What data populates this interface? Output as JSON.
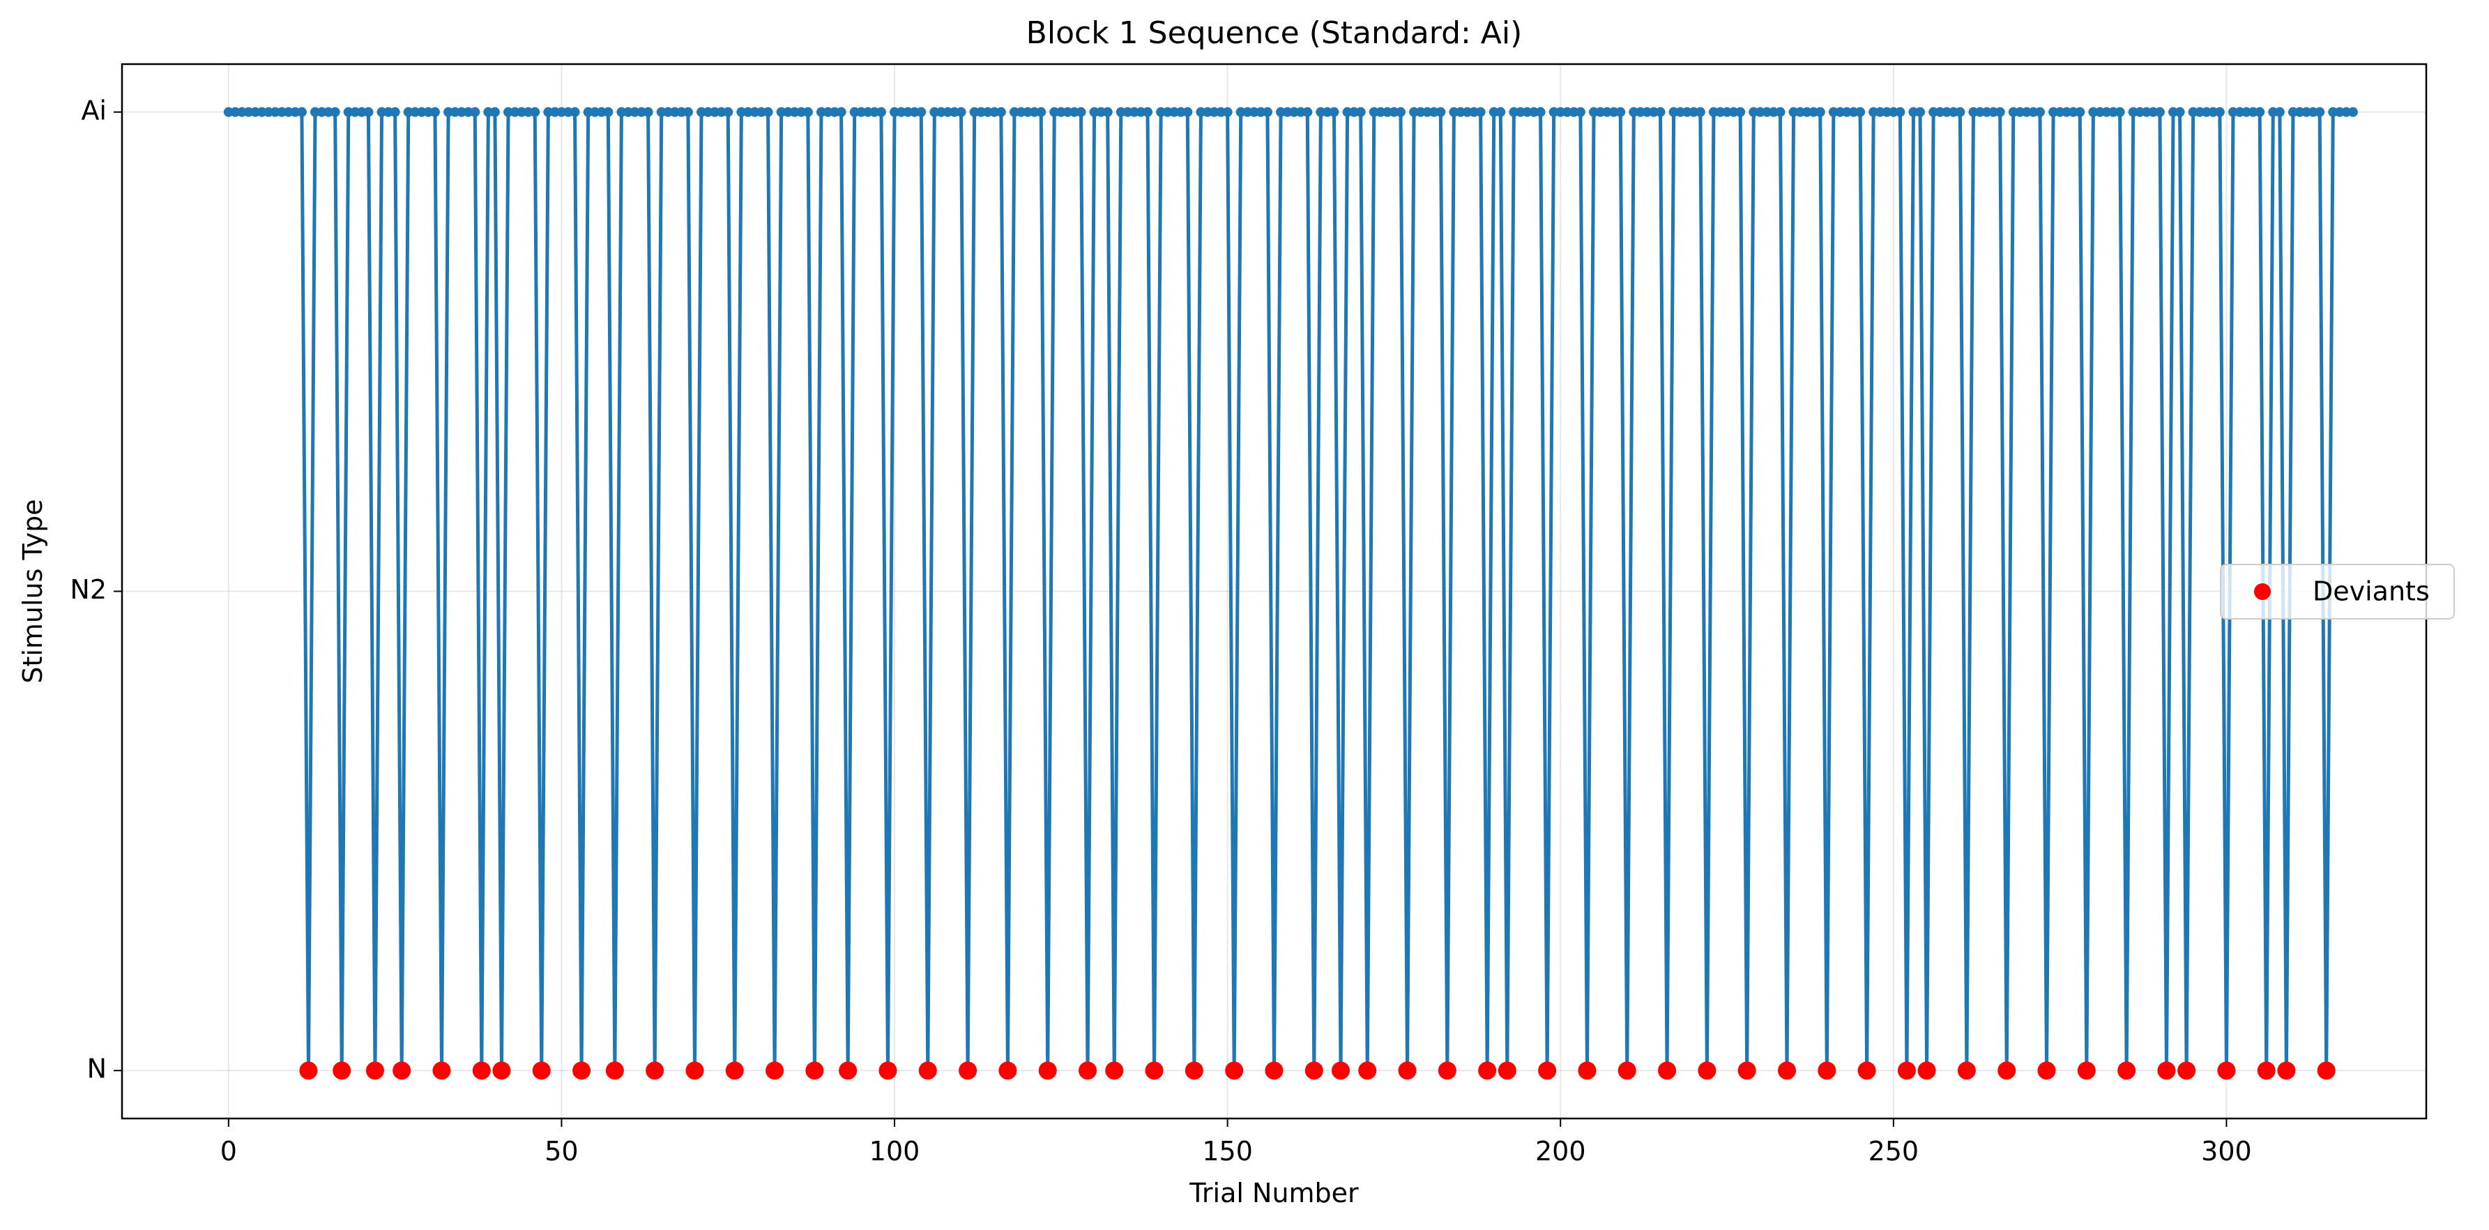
{
  "chart_data": {
    "type": "line",
    "title": "Block 1 Sequence (Standard: Ai)",
    "xlabel": "Trial Number",
    "ylabel": "Stimulus Type",
    "xlim": [
      -16,
      330
    ],
    "ylim": [
      -0.1,
      2.1
    ],
    "x_ticks": [
      0,
      50,
      100,
      150,
      200,
      250,
      300
    ],
    "y_categories": [
      "N",
      "N2",
      "Ai"
    ],
    "y_category_values": [
      0,
      1,
      2
    ],
    "n_trials": 320,
    "standard_value": 2,
    "deviant_value": 0,
    "grid": true,
    "legend_position": "center-right",
    "series": [
      {
        "name": "",
        "role": "sequence",
        "color": "#1f77b4"
      },
      {
        "name": "Deviants",
        "role": "deviants",
        "color": "#ff0000",
        "x": [
          12,
          17,
          22,
          26,
          32,
          38,
          41,
          47,
          53,
          58,
          64,
          70,
          76,
          82,
          88,
          93,
          99,
          105,
          111,
          117,
          123,
          129,
          133,
          139,
          145,
          151,
          157,
          163,
          167,
          171,
          177,
          183,
          189,
          192,
          198,
          204,
          210,
          216,
          222,
          228,
          234,
          240,
          246,
          252,
          255,
          261,
          267,
          273,
          279,
          285,
          291,
          294,
          300,
          306,
          309,
          315
        ],
        "y_value": 0
      }
    ]
  }
}
